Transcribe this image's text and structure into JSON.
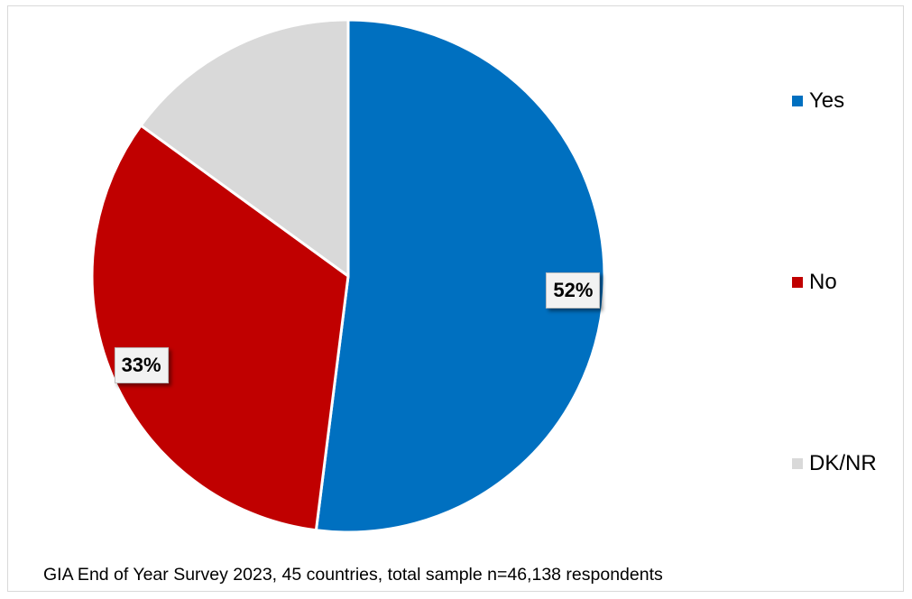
{
  "chart_data": {
    "type": "pie",
    "categories": [
      "Yes",
      "No",
      "DK/NR"
    ],
    "values": [
      52,
      33,
      15
    ],
    "data_labels": [
      "52%",
      "33%",
      ""
    ],
    "colors": [
      "#0070c0",
      "#c00000",
      "#d9d9d9"
    ],
    "legend_placement": "right",
    "start_angle_deg": 0,
    "direction": "clockwise",
    "footnote": "GIA End of Year Survey 2023, 45 countries,  total sample n=46,138 respondents"
  }
}
